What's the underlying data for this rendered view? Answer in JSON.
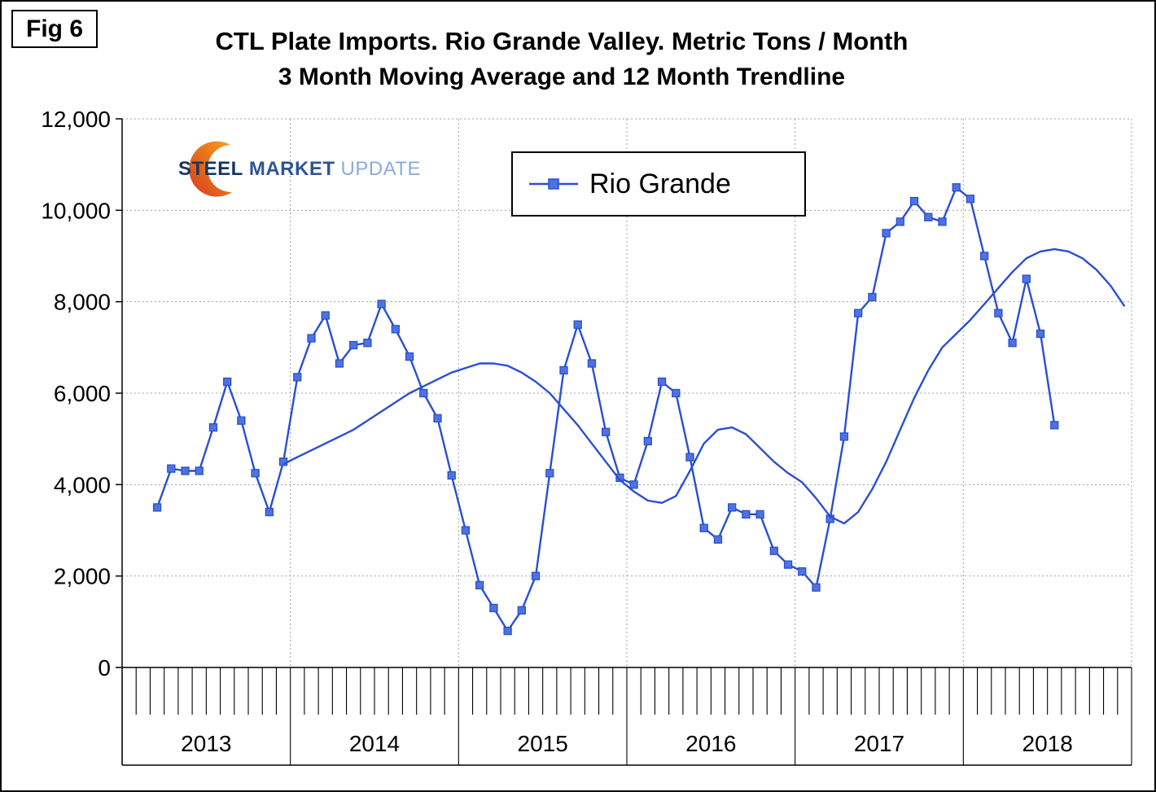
{
  "figure": {
    "label": "Fig 6"
  },
  "title": {
    "line1": "CTL Plate Imports. Rio Grande Valley. Metric Tons / Month",
    "line2": "3 Month Moving Average and 12 Month Trendline"
  },
  "logo": {
    "words": [
      "STEEL",
      "MARKET",
      "UPDATE"
    ],
    "word_colors": [
      "#17365D",
      "#2F5496",
      "#8EAADB"
    ],
    "swoosh_colors": [
      "#D63A1E",
      "#F6A21E"
    ]
  },
  "legend": {
    "label": "Rio Grande"
  },
  "chart_data": {
    "type": "line",
    "title": "CTL Plate Imports. Rio Grande Valley. Metric Tons / Month",
    "subtitle": "3 Month Moving Average and 12 Month Trendline",
    "xlabel": "",
    "ylabel": "",
    "ylim": [
      0,
      12000
    ],
    "ytick_values": [
      0,
      2000,
      4000,
      6000,
      8000,
      10000,
      12000
    ],
    "ytick_labels": [
      "0",
      "2,000",
      "4,000",
      "6,000",
      "8,000",
      "10,000",
      "12,000"
    ],
    "x_year_labels": [
      "2013",
      "2014",
      "2015",
      "2016",
      "2017",
      "2018"
    ],
    "x_month_count": 72,
    "grid": true,
    "legend_position": "top-center",
    "colors": {
      "series_line": "#2A4FD0",
      "marker_fill": "#4E73E1",
      "gridline": "#A0A0A0",
      "axis": "#000000"
    },
    "series": [
      {
        "name": "Rio Grande (3 month moving average)",
        "marker": "square",
        "start_month": "2013-03",
        "start_month_index": 2,
        "values": [
          3500,
          4350,
          4300,
          4300,
          5250,
          6250,
          5400,
          4250,
          3400,
          4500,
          6350,
          7200,
          7700,
          6650,
          7050,
          7100,
          7950,
          7400,
          6800,
          6000,
          5450,
          4200,
          3000,
          1800,
          1300,
          800,
          1250,
          2000,
          4250,
          6500,
          7500,
          6650,
          5150,
          4150,
          4000,
          4950,
          6250,
          6000,
          4600,
          3050,
          2800,
          3500,
          3350,
          3350,
          2550,
          2250,
          2100,
          1750,
          3250,
          5050,
          7750,
          8100,
          9500,
          9750,
          10200,
          9850,
          9750,
          10500,
          10250,
          9000,
          7750,
          7100,
          8500,
          7300,
          5300
        ]
      },
      {
        "name": "12 month trendline",
        "marker": "none",
        "start_month": "2013-12",
        "start_month_index": 11,
        "values": [
          4450,
          4600,
          4750,
          4900,
          5050,
          5200,
          5400,
          5600,
          5800,
          6000,
          6150,
          6300,
          6450,
          6550,
          6650,
          6650,
          6600,
          6450,
          6250,
          6000,
          5650,
          5300,
          4900,
          4500,
          4100,
          3850,
          3650,
          3600,
          3750,
          4300,
          4900,
          5200,
          5250,
          5100,
          4800,
          4500,
          4250,
          4050,
          3700,
          3300,
          3150,
          3400,
          3900,
          4500,
          5200,
          5900,
          6500,
          7000,
          7300,
          7600,
          7950,
          8300,
          8650,
          8950,
          9100,
          9150,
          9100,
          8950,
          8700,
          8350,
          7900
        ]
      }
    ]
  }
}
